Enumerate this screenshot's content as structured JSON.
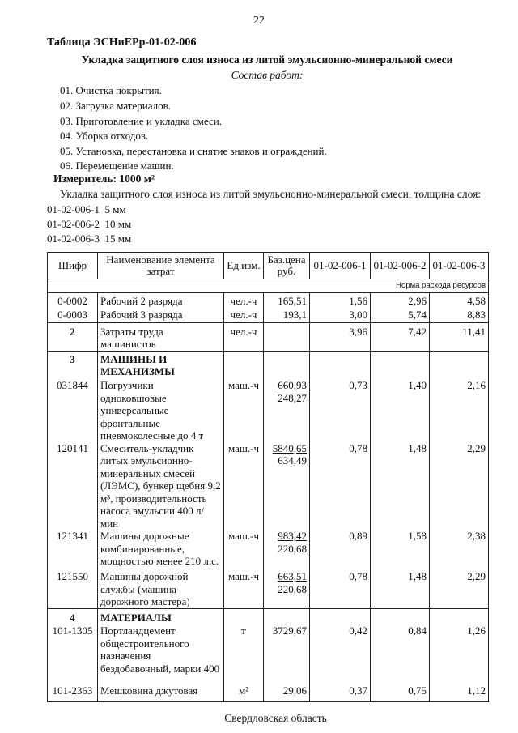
{
  "page_number": "22",
  "table_title": "Таблица  ЭСНиЕРр-01-02-006",
  "subtitle": "Укладка защитного слоя износа из литой эмульсионно-минеральной смеси",
  "composition_heading": "Состав работ:",
  "work_items": [
    "01. Очистка покрытия.",
    "02. Загрузка материалов.",
    "03. Приготовление и укладка смеси.",
    "04. Уборка отходов.",
    "05. Установка, перестановка и снятие знаков и ограждений.",
    "06. Перемещение машин."
  ],
  "meter": "Измеритель: 1000 м²",
  "description": "Укладка защитного слоя износа из литой эмульсионно-минеральной смеси, толщина слоя:",
  "variants": [
    {
      "code": "01-02-006-1",
      "value": "5 мм"
    },
    {
      "code": "01-02-006-2",
      "value": "10 мм"
    },
    {
      "code": "01-02-006-3",
      "value": "15 мм"
    }
  ],
  "table": {
    "headers": [
      "Шифр",
      "Наименование элемента затрат",
      "Ед.изм.",
      "Баз.цена руб.",
      "01-02-006-1",
      "01-02-006-2",
      "01-02-006-3"
    ],
    "norm_label": "Норма расхода ресурсов",
    "rows": [
      {
        "code": "0-0002",
        "name": "Рабочий 2 разряда",
        "unit": "чел.-ч",
        "price": "165,51",
        "price2": "",
        "v": [
          "1,56",
          "2,96",
          "4,58"
        ]
      },
      {
        "code": "0-0003",
        "name": "Рабочий 3 разряда",
        "unit": "чел.-ч",
        "price": "193,1",
        "price2": "",
        "v": [
          "3,00",
          "5,74",
          "8,83"
        ]
      },
      {
        "code": "2",
        "name": "Затраты труда машинистов",
        "unit": "чел.-ч",
        "price": "",
        "price2": "",
        "v": [
          "3,96",
          "7,42",
          "11,41"
        ],
        "bold_code": true
      },
      {
        "code": "3",
        "name": "МАШИНЫ И МЕХАНИЗМЫ",
        "unit": "",
        "price": "",
        "price2": "",
        "v": [
          "",
          "",
          ""
        ],
        "section": true
      },
      {
        "code": "031844",
        "name": "Погрузчики одноковшовые универсальные фронтальные пневмоколесные до 4 т",
        "unit": "маш.-ч",
        "price": "660,93",
        "price2": "248,27",
        "v": [
          "0,73",
          "1,40",
          "2,16"
        ]
      },
      {
        "code": "120141",
        "name": "Смеситель-укладчик литых эмульсионно-минеральных смесей (ЛЭМС), бункер щебня 9,2 м³, производительность насоса эмульсии 400 л/мин",
        "unit": "маш.-ч",
        "price": "5840,65",
        "price2": "634,49",
        "v": [
          "0,78",
          "1,48",
          "2,29"
        ]
      },
      {
        "code": "121341",
        "name": "Машины дорожные комбинированные, мощностью менее 210 л.с.",
        "unit": "маш.-ч",
        "price": "983,42",
        "price2": "220,68",
        "v": [
          "0,89",
          "1,58",
          "2,38"
        ]
      },
      {
        "code": "121550",
        "name": "Машины дорожной службы (машина дорожного мастера)",
        "unit": "маш.-ч",
        "price": "663,51",
        "price2": "220,68",
        "v": [
          "0,78",
          "1,48",
          "2,29"
        ]
      },
      {
        "code": "4",
        "name": "МАТЕРИАЛЫ",
        "unit": "",
        "price": "",
        "price2": "",
        "v": [
          "",
          "",
          ""
        ],
        "section": true
      },
      {
        "code": "101-1305",
        "name": "Портландцемент общестроительного назначения бездобавочный, марки 400",
        "unit": "т",
        "price": "3729,67",
        "price2": "",
        "v": [
          "0,42",
          "0,84",
          "1,26"
        ]
      },
      {
        "code": "101-2363",
        "name": "Мешковина джутовая",
        "unit": "м²",
        "price": "29,06",
        "price2": "",
        "v": [
          "0,37",
          "0,75",
          "1,12"
        ]
      }
    ]
  },
  "footer": "Свердловская область"
}
